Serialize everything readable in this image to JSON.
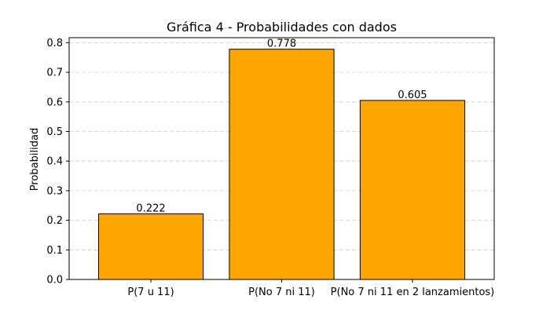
{
  "chart_data": {
    "type": "bar",
    "title": "Gráfica 4 - Probabilidades con dados",
    "xlabel": "",
    "ylabel": "Probabilidad",
    "categories": [
      "P(7 u 11)",
      "P(No 7 ni 11)",
      "P(No 7 ni 11 en 2 lanzamientos)"
    ],
    "values": [
      0.222,
      0.778,
      0.605
    ],
    "data_labels": [
      "0.222",
      "0.778",
      "0.605"
    ],
    "ylim": [
      0,
      0.817
    ],
    "yticks": [
      0.0,
      0.1,
      0.2,
      0.3,
      0.4,
      0.5,
      0.6,
      0.7,
      0.8
    ],
    "ytick_labels": [
      "0.0",
      "0.1",
      "0.2",
      "0.3",
      "0.4",
      "0.5",
      "0.6",
      "0.7",
      "0.8"
    ],
    "grid": "y-axis dashed",
    "bar_color": "#ffa500",
    "bar_edge_color": "#000000",
    "grid_color": "#cccccc"
  }
}
